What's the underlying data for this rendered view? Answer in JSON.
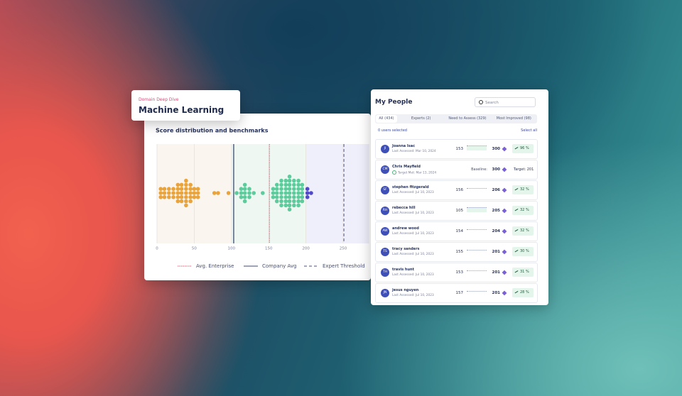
{
  "header": {
    "eyebrow": "Domain Deep Dive",
    "title": "Machine Learning"
  },
  "chart_data": {
    "type": "beeswarm",
    "title": "Score distribution and benchmarks",
    "xlim": [
      0,
      285
    ],
    "xticks": [
      0,
      50,
      100,
      150,
      200,
      250
    ],
    "grid": true,
    "bands": [
      {
        "from": 0,
        "to": 100,
        "color": "#faf5ef"
      },
      {
        "from": 100,
        "to": 200,
        "color": "#eef7f1"
      },
      {
        "from": 200,
        "to": 285,
        "color": "#efeffb"
      }
    ],
    "series": [
      {
        "color": "#e9a43c",
        "values": [
          5,
          5,
          5,
          10,
          10,
          10,
          16,
          16,
          16,
          22,
          22,
          22,
          28,
          28,
          28,
          28,
          28,
          33,
          33,
          33,
          33,
          33,
          39,
          39,
          39,
          39,
          39,
          39,
          39,
          45,
          45,
          45,
          45,
          45,
          50,
          50,
          50,
          55,
          55,
          55,
          77,
          82,
          96
        ]
      },
      {
        "color": "#5dcc9c",
        "values": [
          107,
          113,
          113,
          113,
          118,
          118,
          118,
          118,
          118,
          124,
          124,
          124,
          130,
          142,
          156,
          156,
          156,
          161,
          161,
          161,
          161,
          161,
          167,
          167,
          167,
          167,
          167,
          167,
          167,
          173,
          173,
          173,
          173,
          173,
          173,
          173,
          178,
          178,
          178,
          178,
          178,
          178,
          178,
          178,
          178,
          184,
          184,
          184,
          184,
          184,
          184,
          184,
          190,
          190,
          190,
          190,
          190,
          190,
          190,
          195,
          195,
          195,
          195,
          195
        ]
      },
      {
        "color": "#5049c8",
        "values": [
          202,
          202,
          202,
          207
        ]
      }
    ],
    "reference_lines": [
      {
        "name": "Avg. Enterprise",
        "value": 151,
        "color": "#e05570",
        "style": "dotted"
      },
      {
        "name": "Company Avg",
        "value": 103,
        "color": "#3d4a6c",
        "style": "solid"
      },
      {
        "name": "Expert Threshold",
        "value": 251,
        "color": "#4b4f7a",
        "style": "dashed"
      }
    ],
    "legend": "bottom"
  },
  "people": {
    "title": "My People",
    "search": "Search",
    "tabs": [
      "All (434)",
      "Experts (2)",
      "Need to Assess (329)",
      "Most Improved (98)"
    ],
    "selected": "0 users selected",
    "select_all": "Select all",
    "rows": [
      {
        "initials": "JI",
        "name": "Joanna Isac",
        "subtitle": "Last Assessed: Mar 10, 2024",
        "score": "153",
        "score2": "300",
        "change": "96 %"
      },
      {
        "initials": "CM",
        "name": "Chris Mayfield",
        "subtitle": "Target Met: Mar 13, 2024",
        "baseline": "Baseline:",
        "score2": "300",
        "target": "Target: 201"
      },
      {
        "initials": "SF",
        "name": "stephen fitzgerald",
        "subtitle": "Last Assessed: Jul 10, 2023",
        "score": "156",
        "score2": "206",
        "change": "32 %"
      },
      {
        "initials": "RH",
        "name": "rebecca hill",
        "subtitle": "Last Assessed: Jul 10, 2023",
        "score": "105",
        "score2": "205",
        "change": "32 %"
      },
      {
        "initials": "AW",
        "name": "andrew wood",
        "subtitle": "Last Assessed: Jul 10, 2023",
        "score": "154",
        "score2": "204",
        "change": "32 %"
      },
      {
        "initials": "TS",
        "name": "tracy sanders",
        "subtitle": "Last Assessed: Jul 10, 2023",
        "score": "155",
        "score2": "201",
        "change": "30 %"
      },
      {
        "initials": "TH",
        "name": "travis hunt",
        "subtitle": "Last Assessed: Jul 10, 2023",
        "score": "153",
        "score2": "201",
        "change": "31 %"
      },
      {
        "initials": "JN",
        "name": "jesus nguyen",
        "subtitle": "Last Assessed: Jul 10, 2023",
        "score": "157",
        "score2": "201",
        "change": "28 %"
      }
    ]
  }
}
